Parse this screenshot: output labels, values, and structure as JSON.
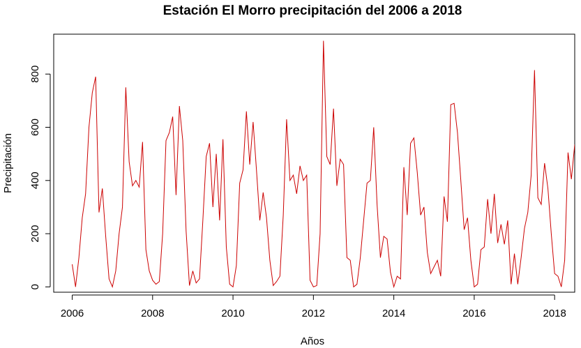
{
  "chart_data": {
    "type": "line",
    "title": "Estación El Morro precipitación del 2006 a 2018",
    "xlabel": "Años",
    "ylabel": "Precipitación",
    "xlim": [
      2005.54,
      2018.5
    ],
    "ylim": [
      -20,
      950
    ],
    "x_ticks": [
      2006,
      2008,
      2010,
      2012,
      2014,
      2016,
      2018
    ],
    "y_ticks": [
      0,
      200,
      400,
      600,
      800
    ],
    "grid": false,
    "series": [
      {
        "color": "#cc0000",
        "x_start": 2006.0,
        "x_step": 0.0833333,
        "values": [
          85,
          0,
          110,
          260,
          350,
          600,
          730,
          790,
          280,
          370,
          190,
          30,
          0,
          60,
          200,
          300,
          750,
          470,
          380,
          400,
          375,
          545,
          140,
          60,
          25,
          10,
          20,
          200,
          550,
          580,
          640,
          345,
          680,
          550,
          210,
          5,
          60,
          15,
          30,
          250,
          490,
          540,
          300,
          500,
          250,
          555,
          150,
          10,
          0,
          80,
          390,
          440,
          660,
          460,
          620,
          440,
          250,
          355,
          260,
          100,
          5,
          20,
          40,
          270,
          630,
          400,
          420,
          350,
          455,
          400,
          420,
          25,
          0,
          5,
          200,
          925,
          490,
          460,
          670,
          380,
          480,
          460,
          110,
          100,
          0,
          10,
          110,
          250,
          390,
          400,
          600,
          310,
          110,
          190,
          180,
          55,
          0,
          40,
          30,
          450,
          270,
          540,
          560,
          430,
          270,
          300,
          130,
          50,
          75,
          100,
          40,
          340,
          245,
          685,
          690,
          580,
          400,
          215,
          260,
          100,
          0,
          10,
          140,
          150,
          330,
          200,
          350,
          165,
          235,
          160,
          250,
          10,
          125,
          10,
          110,
          220,
          280,
          420,
          815,
          335,
          310,
          465,
          370,
          200,
          50,
          40,
          0,
          100,
          505,
          405,
          535
        ]
      }
    ]
  }
}
